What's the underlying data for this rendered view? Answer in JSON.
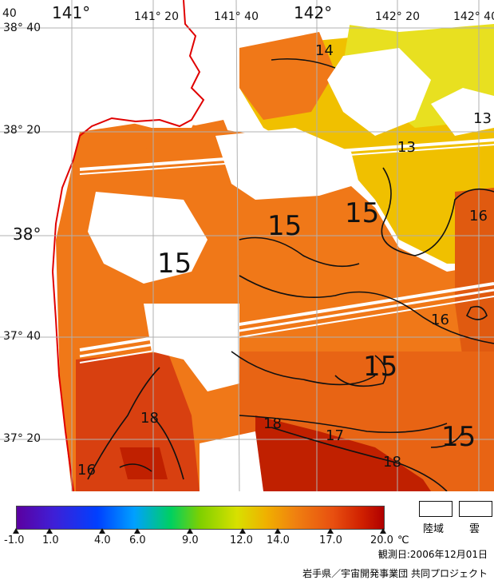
{
  "map": {
    "lon_labels": {
      "l0": "141°",
      "l1": "141° 20",
      "l2": "141° 40",
      "l3": "142°",
      "l4": "142° 20",
      "l5": "142° 40"
    },
    "lat_labels": {
      "a0": "38° 40",
      "a1": "38° 20",
      "a2": "38°",
      "a3": "37° 40",
      "a4": "37° 20"
    },
    "corner_text": "40",
    "isotherms": {
      "i14": "14",
      "i13a": "13",
      "i13b": "13",
      "i16a": "16",
      "i16b": "16",
      "i18a": "18",
      "i18b": "18",
      "i17": "17",
      "i16c": "16",
      "i15a": "15",
      "i15b": "15",
      "i15c": "15",
      "i15d": "15",
      "i15e": "15",
      "i18c": "18"
    },
    "colors": {
      "orange": "#f07818",
      "deep_orange": "#e05a10",
      "red": "#c02000",
      "yellow": "#e8d800",
      "yellow_orange": "#f0b000",
      "coast": "#e00000",
      "grid": "#b0b0b0"
    }
  },
  "legend": {
    "ticks": [
      "-1.0",
      "1.0",
      "4.0",
      "6.0",
      "9.0",
      "12.0",
      "14.0",
      "17.0",
      "20.0"
    ],
    "unit": "℃",
    "land_label": "陸域",
    "cloud_label": "雲",
    "date": "観測日:2006年12月01日",
    "credit": "岩手県／宇宙開発事業団 共同プロジェクト"
  }
}
